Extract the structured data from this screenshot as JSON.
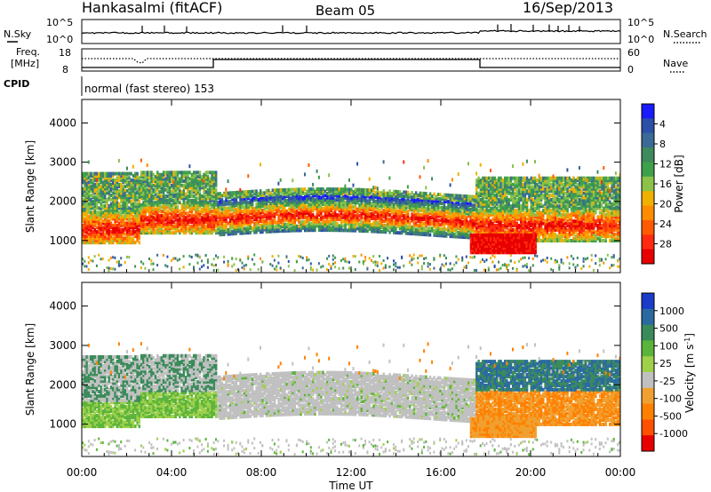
{
  "header": {
    "station": "Hankasalmi (fitACF)",
    "beam": "Beam 05",
    "date": "16/Sep/2013"
  },
  "noise_panel": {
    "left_label": "N.Sky",
    "right_label": "N.Search",
    "left_ticks": [
      "10^5",
      "10^0"
    ],
    "right_ticks": [
      "10^5",
      "10^0"
    ]
  },
  "freq_panel": {
    "label_line1": "Freq.",
    "label_line2": "[MHz]",
    "left_ticks": [
      "18",
      "8"
    ],
    "right_ticks": [
      "60",
      "0"
    ],
    "right_label": "Nave",
    "cpid_label": "CPID",
    "mode_text": "normal (fast stereo) 153"
  },
  "chart_data": [
    {
      "type": "heatmap",
      "name": "power",
      "ylabel": "Slant Range [km]",
      "yticks": [
        "1000",
        "2000",
        "3000",
        "4000"
      ],
      "ylim": [
        180,
        4600
      ],
      "xlim": [
        "00:00",
        "24:00"
      ],
      "colorbar": {
        "label": "Power [dB]",
        "ticks": [
          "4",
          "8",
          "12",
          "16",
          "20",
          "24",
          "28"
        ],
        "colors": [
          "#1a1aff",
          "#2c4fa8",
          "#3a6a96",
          "#3d8a5c",
          "#3fa04a",
          "#8ac24a",
          "#f0b000",
          "#ff8c00",
          "#ff5a00",
          "#ff2a10",
          "#e80000"
        ]
      }
    },
    {
      "type": "heatmap",
      "name": "velocity",
      "ylabel": "Slant Range [km]",
      "yticks": [
        "1000",
        "2000",
        "3000",
        "4000"
      ],
      "ylim": [
        180,
        4600
      ],
      "xlim": [
        "00:00",
        "24:00"
      ],
      "colorbar": {
        "label": "Velocity [m s",
        "label_sup": "-1",
        "label_end": "]",
        "ticks": [
          "1000",
          "500",
          "100",
          "25",
          "-25",
          "-100",
          "-500",
          "-1000"
        ],
        "colors": [
          "#1a3cc8",
          "#2a6aa0",
          "#3a8a5a",
          "#5ab43a",
          "#9ed04a",
          "#c0c0c0",
          "#f0a030",
          "#ff8000",
          "#ff5000",
          "#e80000"
        ]
      }
    }
  ],
  "x_axis": {
    "ticks": [
      "00:00",
      "04:00",
      "08:00",
      "12:00",
      "16:00",
      "20:00",
      "00:00"
    ],
    "label": "Time UT"
  }
}
